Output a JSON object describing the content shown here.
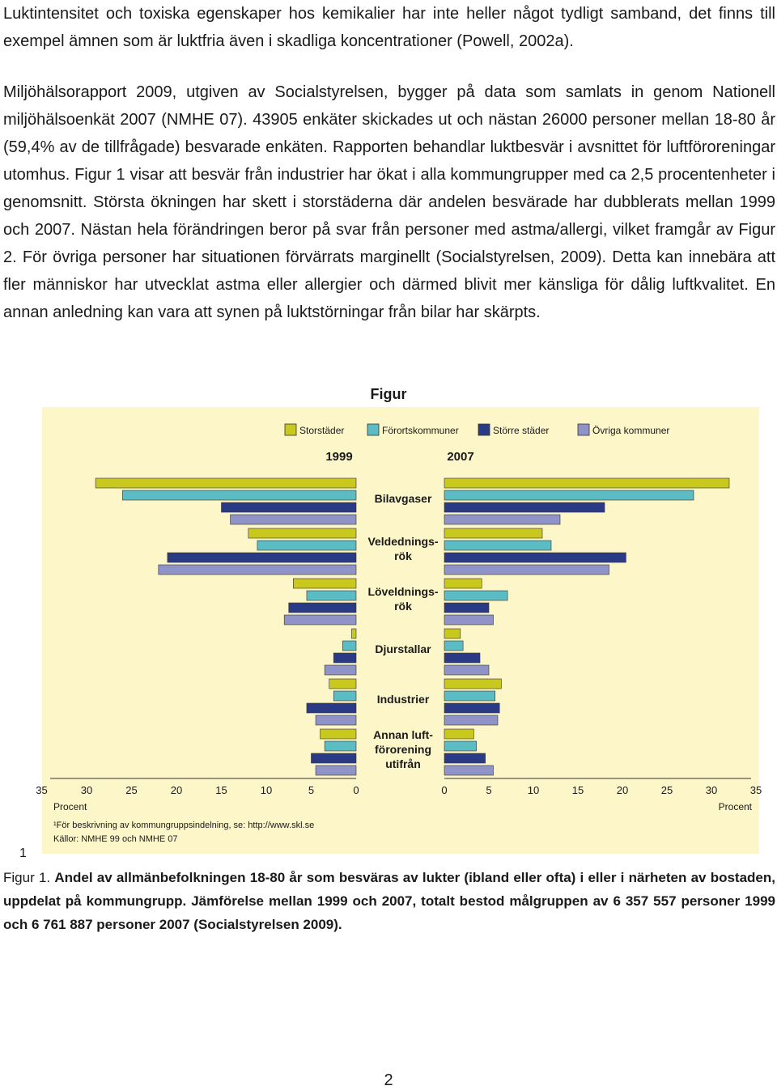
{
  "paragraphs": [
    "Luktintensitet och toxiska egenskaper hos kemikalier har inte heller något tydligt samband, det finns till exempel ämnen som är luktfria även i skadliga koncentrationer (Powell, 2002a).",
    "Miljöhälsorapport 2009, utgiven av Socialstyrelsen, bygger på data som samlats in genom Nationell miljöhälsoenkät 2007 (NMHE 07). 43905 enkäter skickades ut och nästan 26000 personer mellan 18-80 år (59,4% av de tillfrågade) besvarade enkäten. Rapporten behandlar luktbesvär i avsnittet för luftföroreningar utomhus. Figur 1 visar att besvär från industrier har ökat i alla kommungrupper med ca 2,5 procentenheter i genomsnitt. Största ökningen har skett i storstäderna där andelen besvärade har dubblerats mellan 1999 och 2007. Nästan hela förändringen beror på svar från personer med astma/allergi, vilket framgår av Figur 2. För övriga personer har situationen förvärrats marginellt (Socialstyrelsen, 2009). Detta kan innebära att fler människor har utvecklat astma eller allergier och därmed blivit mer känsliga för dålig luftkvalitet. En annan anledning kan vara att synen på luktstörningar från bilar har skärpts."
  ],
  "figure_title": "Figur",
  "footnote_marker": "1",
  "caption": {
    "label": "Figur 1.",
    "text": "Andel av allmänbefolkningen 18-80 år som besväras av lukter (ibland eller ofta) i eller i närheten av bostaden, uppdelat på kommungrupp. Jämförelse mellan 1999 och 2007, totalt bestod målgruppen av 6 357 557 personer 1999 och 6 761 887 personer 2007 (Socialstyrelsen 2009)."
  },
  "page_number": "2",
  "chart_data": {
    "type": "bar",
    "orientation": "horizontal-butterfly",
    "panels": [
      "1999",
      "2007"
    ],
    "categories": [
      "Bilavgaser",
      "Veldednings-\nrök",
      "Löveldnings-\nrök",
      "Djurstallar",
      "Industrier",
      "Annan luft-\nförorening\nutifrån"
    ],
    "series": [
      {
        "name": "Storstäder",
        "color": "#c8c81e",
        "values_1999": [
          29,
          12,
          7,
          0.5,
          3.0,
          4.0
        ],
        "values_2007": [
          32,
          11,
          4.2,
          1.8,
          6.4,
          3.3
        ]
      },
      {
        "name": "Förortskommuner",
        "color": "#5bbcc4",
        "values_1999": [
          26,
          11,
          5.5,
          1.5,
          2.5,
          3.5
        ],
        "values_2007": [
          28,
          12,
          7.1,
          2.1,
          5.7,
          3.6
        ]
      },
      {
        "name": "Större städer",
        "color": "#2b3a85",
        "values_1999": [
          15,
          21,
          7.5,
          2.5,
          5.5,
          5.0
        ],
        "values_2007": [
          18,
          20.4,
          5.0,
          4.0,
          6.2,
          4.6
        ]
      },
      {
        "name": "Övriga kommuner",
        "color": "#8f93c8",
        "values_1999": [
          14,
          22,
          8.0,
          3.5,
          4.5,
          4.5
        ],
        "values_2007": [
          13,
          18.5,
          5.5,
          5.0,
          6.0,
          5.5
        ]
      }
    ],
    "left_ticks": [
      "35",
      "30",
      "25",
      "20",
      "15",
      "10",
      "5",
      "0"
    ],
    "right_ticks": [
      "0",
      "5",
      "10",
      "15",
      "20",
      "25",
      "30",
      "35"
    ],
    "xlim": [
      0,
      35
    ],
    "axis_unit_left": "Procent",
    "axis_unit_right": "Procent",
    "notes": [
      "¹För beskrivning av kommungruppsindelning, se: http://www.skl.se",
      "Källor: NMHE 99 och NMHE 07"
    ],
    "legend_position": "top"
  }
}
